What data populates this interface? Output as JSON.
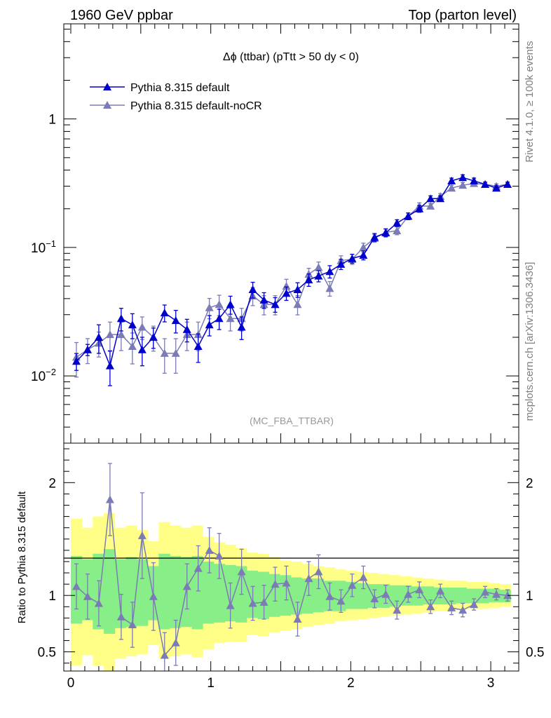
{
  "header": {
    "left": "1960 GeV ppbar",
    "right": "Top (parton level)"
  },
  "side_labels": {
    "top": "Rivet 4.1.0, ≥ 100k events",
    "bottom": "mcplots.cern.ch [arXiv:1306.3436]"
  },
  "colors": {
    "default": "#0000cc",
    "nocr": "#7b7bb5",
    "band_inner": "#88ee88",
    "band_outer": "#ffff88"
  },
  "chart_data": [
    {
      "type": "line",
      "title": "Δϕ (ttbar) (pTtt > 50 dy < 0)",
      "analysis_label": "(MC_FBA_TTBAR)",
      "yscale": "log",
      "xlim": [
        -0.05,
        3.2
      ],
      "ylim": [
        0.003,
        5.5
      ],
      "yticks": [
        {
          "v": 0.01,
          "base": "10",
          "exp": "−2"
        },
        {
          "v": 0.1,
          "base": "10",
          "exp": "−1"
        },
        {
          "v": 1,
          "base": "1",
          "exp": ""
        }
      ],
      "legend": [
        "Pythia 8.315 default",
        "Pythia 8.315 default-noCR"
      ],
      "x": [
        0.04,
        0.12,
        0.2,
        0.28,
        0.36,
        0.44,
        0.51,
        0.59,
        0.67,
        0.75,
        0.83,
        0.91,
        0.99,
        1.06,
        1.14,
        1.22,
        1.3,
        1.38,
        1.46,
        1.54,
        1.62,
        1.7,
        1.77,
        1.85,
        1.93,
        2.01,
        2.09,
        2.17,
        2.25,
        2.33,
        2.41,
        2.49,
        2.57,
        2.64,
        2.72,
        2.8,
        2.88,
        2.96,
        3.04,
        3.12
      ],
      "series": [
        {
          "name": "Pythia 8.315 default",
          "values": [
            0.013,
            0.016,
            0.02,
            0.012,
            0.028,
            0.025,
            0.016,
            0.02,
            0.031,
            0.027,
            0.023,
            0.017,
            0.025,
            0.028,
            0.036,
            0.024,
            0.047,
            0.039,
            0.036,
            0.044,
            0.047,
            0.056,
            0.06,
            0.065,
            0.074,
            0.082,
            0.087,
            0.12,
            0.13,
            0.155,
            0.175,
            0.2,
            0.24,
            0.24,
            0.33,
            0.35,
            0.33,
            0.31,
            0.29,
            0.31
          ],
          "errors": [
            0.15,
            0.1,
            0.25,
            0.3,
            0.2,
            0.22,
            0.25,
            0.18,
            0.15,
            0.2,
            0.2,
            0.25,
            0.18,
            0.18,
            0.16,
            0.2,
            0.14,
            0.14,
            0.13,
            0.12,
            0.13,
            0.11,
            0.1,
            0.11,
            0.09,
            0.08,
            0.08,
            0.07,
            0.07,
            0.06,
            0.06,
            0.06,
            0.05,
            0.05,
            0.05,
            0.05,
            0.05,
            0.04,
            0.04,
            0.04
          ]
        },
        {
          "name": "Pythia 8.315 default-noCR",
          "values": [
            0.014,
            0.016,
            0.018,
            0.021,
            0.021,
            0.017,
            0.024,
            0.02,
            0.015,
            0.015,
            0.021,
            0.021,
            0.034,
            0.036,
            0.028,
            0.028,
            0.042,
            0.036,
            0.036,
            0.05,
            0.036,
            0.062,
            0.07,
            0.048,
            0.079,
            0.081,
            0.1,
            0.118,
            0.131,
            0.135,
            0.175,
            0.21,
            0.21,
            0.25,
            0.29,
            0.305,
            0.315,
            0.31,
            0.3,
            0.31
          ],
          "errors": [
            0.3,
            0.22,
            0.22,
            0.25,
            0.25,
            0.27,
            0.2,
            0.22,
            0.3,
            0.3,
            0.25,
            0.25,
            0.18,
            0.18,
            0.2,
            0.2,
            0.16,
            0.17,
            0.17,
            0.13,
            0.17,
            0.11,
            0.1,
            0.13,
            0.09,
            0.09,
            0.08,
            0.07,
            0.07,
            0.07,
            0.06,
            0.06,
            0.05,
            0.05,
            0.05,
            0.05,
            0.05,
            0.04,
            0.04,
            0.04
          ]
        }
      ]
    },
    {
      "type": "line",
      "ylabel": "Ratio to Pythia 8.315 default",
      "xlim": [
        -0.05,
        3.2
      ],
      "ylim": [
        0.33,
        2.35
      ],
      "xticks": [
        0,
        1,
        2,
        3
      ],
      "yticks": [
        0.5,
        1,
        2
      ],
      "band_edges": [
        0.0,
        0.079,
        0.157,
        0.236,
        0.314,
        0.393,
        0.471,
        0.55,
        0.628,
        0.707,
        0.785,
        0.864,
        0.942,
        1.021,
        1.1,
        1.178,
        1.257,
        1.335,
        1.414,
        1.492,
        1.571,
        1.649,
        1.728,
        1.806,
        1.885,
        1.963,
        2.042,
        2.12,
        2.199,
        2.277,
        2.356,
        2.434,
        2.513,
        2.592,
        2.67,
        2.749,
        2.827,
        2.906,
        2.985,
        3.063,
        3.142
      ],
      "band_inner_lo": [
        0.75,
        0.78,
        0.7,
        0.66,
        0.71,
        0.72,
        0.73,
        0.78,
        0.7,
        0.71,
        0.72,
        0.7,
        0.75,
        0.76,
        0.77,
        0.76,
        0.8,
        0.79,
        0.81,
        0.82,
        0.83,
        0.84,
        0.85,
        0.86,
        0.86,
        0.88,
        0.88,
        0.89,
        0.89,
        0.9,
        0.91,
        0.91,
        0.92,
        0.92,
        0.92,
        0.93,
        0.93,
        0.93,
        0.94,
        0.94
      ],
      "band_inner_hi": [
        1.35,
        1.32,
        1.37,
        1.41,
        1.32,
        1.34,
        1.32,
        1.26,
        1.37,
        1.35,
        1.34,
        1.35,
        1.3,
        1.28,
        1.27,
        1.26,
        1.22,
        1.21,
        1.19,
        1.18,
        1.16,
        1.15,
        1.15,
        1.13,
        1.13,
        1.12,
        1.11,
        1.1,
        1.1,
        1.09,
        1.09,
        1.08,
        1.08,
        1.07,
        1.07,
        1.07,
        1.06,
        1.06,
        1.06,
        1.05
      ],
      "band_outer_lo": [
        0.38,
        0.47,
        0.38,
        0.33,
        0.44,
        0.46,
        0.48,
        0.56,
        0.44,
        0.46,
        0.48,
        0.45,
        0.52,
        0.58,
        0.59,
        0.59,
        0.65,
        0.64,
        0.67,
        0.69,
        0.7,
        0.72,
        0.74,
        0.75,
        0.77,
        0.78,
        0.79,
        0.8,
        0.81,
        0.82,
        0.83,
        0.84,
        0.85,
        0.86,
        0.86,
        0.87,
        0.88,
        0.88,
        0.89,
        0.9
      ],
      "band_outer_hi": [
        1.68,
        1.6,
        1.7,
        1.73,
        1.6,
        1.62,
        1.58,
        1.48,
        1.65,
        1.62,
        1.6,
        1.62,
        1.52,
        1.47,
        1.45,
        1.42,
        1.38,
        1.37,
        1.34,
        1.31,
        1.3,
        1.28,
        1.26,
        1.25,
        1.23,
        1.22,
        1.21,
        1.2,
        1.19,
        1.18,
        1.17,
        1.16,
        1.15,
        1.14,
        1.13,
        1.13,
        1.12,
        1.12,
        1.11,
        1.1
      ],
      "ratio_values": [
        1.08,
        0.99,
        0.93,
        1.85,
        0.81,
        0.74,
        1.53,
        0.99,
        0.47,
        0.58,
        1.08,
        1.24,
        1.4,
        1.35,
        0.91,
        1.21,
        0.93,
        0.94,
        1.1,
        1.11,
        0.79,
        1.15,
        1.21,
        0.99,
        0.95,
        1.09,
        1.16,
        0.97,
        1.01,
        0.87,
        1.01,
        1.05,
        0.9,
        1.04,
        0.89,
        0.87,
        0.92,
        1.03,
        1.01,
        1.0
      ],
      "ratio_errors": [
        0.2,
        0.2,
        0.2,
        0.32,
        0.2,
        0.2,
        0.38,
        0.3,
        0.2,
        0.2,
        0.2,
        0.2,
        0.2,
        0.2,
        0.2,
        0.2,
        0.15,
        0.15,
        0.15,
        0.15,
        0.15,
        0.15,
        0.15,
        0.12,
        0.1,
        0.1,
        0.1,
        0.08,
        0.08,
        0.08,
        0.07,
        0.07,
        0.06,
        0.06,
        0.06,
        0.06,
        0.05,
        0.05,
        0.05,
        0.05
      ]
    }
  ]
}
